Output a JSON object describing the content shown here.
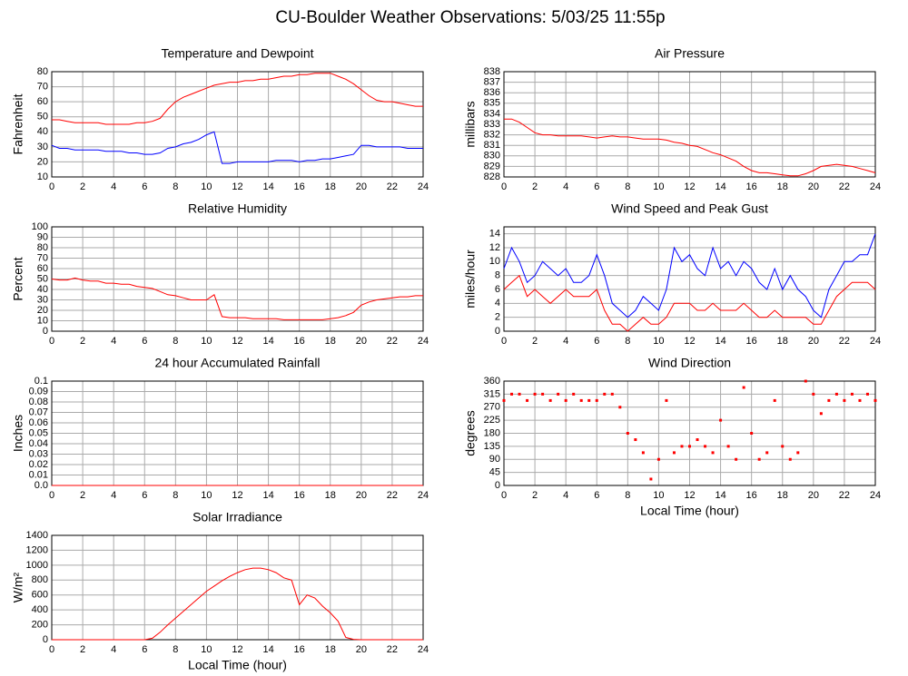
{
  "title": "CU-Boulder Weather Observations: 5/03/25 11:55p",
  "chart_data": [
    {
      "type": "line",
      "title": "Temperature and Dewpoint",
      "ylabel": "Fahrenheit",
      "x": [
        0,
        0.5,
        1,
        1.5,
        2,
        2.5,
        3,
        3.5,
        4,
        4.5,
        5,
        5.5,
        6,
        6.5,
        7,
        7.5,
        8,
        8.5,
        9,
        9.5,
        10,
        10.5,
        11,
        11.5,
        12,
        12.5,
        13,
        13.5,
        14,
        14.5,
        15,
        15.5,
        16,
        16.5,
        17,
        17.5,
        18,
        18.5,
        19,
        19.5,
        20,
        20.5,
        21,
        21.5,
        22,
        22.5,
        23,
        23.5,
        24
      ],
      "series": [
        {
          "color": "#ff0000",
          "values": [
            48,
            48,
            47,
            46,
            46,
            46,
            46,
            45,
            45,
            45,
            45,
            46,
            46,
            47,
            49,
            55,
            60,
            63,
            65,
            67,
            69,
            71,
            72,
            73,
            73,
            74,
            74,
            75,
            75,
            76,
            77,
            77,
            78,
            78,
            79,
            79,
            79,
            77,
            75,
            72,
            68,
            64,
            61,
            60,
            60,
            59,
            58,
            57,
            57
          ]
        },
        {
          "color": "#0000ff",
          "values": [
            31,
            29,
            29,
            28,
            28,
            28,
            28,
            27,
            27,
            27,
            26,
            26,
            25,
            25,
            26,
            29,
            30,
            32,
            33,
            35,
            38,
            40,
            19,
            19,
            20,
            20,
            20,
            20,
            20,
            21,
            21,
            21,
            20,
            21,
            21,
            22,
            22,
            23,
            24,
            25,
            31,
            31,
            30,
            30,
            30,
            30,
            29,
            29,
            29
          ]
        }
      ],
      "xlim": [
        0,
        24
      ],
      "xticks": [
        0,
        2,
        4,
        6,
        8,
        10,
        12,
        14,
        16,
        18,
        20,
        22,
        24
      ],
      "ylim": [
        10,
        80
      ],
      "yticks": [
        10,
        20,
        30,
        40,
        50,
        60,
        70,
        80
      ],
      "grid": true
    },
    {
      "type": "line",
      "title": "Air Pressure",
      "ylabel": "millibars",
      "x": [
        0,
        0.5,
        1,
        1.5,
        2,
        2.5,
        3,
        3.5,
        4,
        4.5,
        5,
        5.5,
        6,
        6.5,
        7,
        7.5,
        8,
        8.5,
        9,
        9.5,
        10,
        10.5,
        11,
        11.5,
        12,
        12.5,
        13,
        13.5,
        14,
        14.5,
        15,
        15.5,
        16,
        16.5,
        17,
        17.5,
        18,
        18.5,
        19,
        19.5,
        20,
        20.5,
        21,
        21.5,
        22,
        22.5,
        23,
        23.5,
        24
      ],
      "series": [
        {
          "color": "#ff0000",
          "values": [
            833.5,
            833.5,
            833.2,
            832.7,
            832.2,
            832,
            832,
            831.9,
            831.9,
            831.9,
            831.9,
            831.8,
            831.7,
            831.8,
            831.9,
            831.8,
            831.8,
            831.7,
            831.6,
            831.6,
            831.6,
            831.5,
            831.3,
            831.2,
            831,
            830.9,
            830.6,
            830.3,
            830.1,
            829.8,
            829.5,
            829,
            828.6,
            828.4,
            828.4,
            828.3,
            828.2,
            828.1,
            828.1,
            828.3,
            828.6,
            829,
            829.1,
            829.2,
            829.1,
            829,
            828.8,
            828.6,
            828.4
          ]
        }
      ],
      "xlim": [
        0,
        24
      ],
      "xticks": [
        0,
        2,
        4,
        6,
        8,
        10,
        12,
        14,
        16,
        18,
        20,
        22,
        24
      ],
      "ylim": [
        828,
        838
      ],
      "yticks": [
        828,
        829,
        830,
        831,
        832,
        833,
        834,
        835,
        836,
        837,
        838
      ],
      "grid": true
    },
    {
      "type": "line",
      "title": "Relative Humidity",
      "ylabel": "Percent",
      "x": [
        0,
        0.5,
        1,
        1.5,
        2,
        2.5,
        3,
        3.5,
        4,
        4.5,
        5,
        5.5,
        6,
        6.5,
        7,
        7.5,
        8,
        8.5,
        9,
        9.5,
        10,
        10.5,
        11,
        11.5,
        12,
        12.5,
        13,
        13.5,
        14,
        14.5,
        15,
        15.5,
        16,
        16.5,
        17,
        17.5,
        18,
        18.5,
        19,
        19.5,
        20,
        20.5,
        21,
        21.5,
        22,
        22.5,
        23,
        23.5,
        24
      ],
      "series": [
        {
          "color": "#ff0000",
          "values": [
            50,
            49,
            49,
            51,
            49,
            48,
            48,
            46,
            46,
            45,
            45,
            43,
            42,
            41,
            38,
            35,
            34,
            32,
            30,
            30,
            30,
            35,
            14,
            13,
            13,
            13,
            12,
            12,
            12,
            12,
            11,
            11,
            11,
            11,
            11,
            11,
            12,
            13,
            15,
            18,
            25,
            28,
            30,
            31,
            32,
            33,
            33,
            34,
            34
          ]
        }
      ],
      "xlim": [
        0,
        24
      ],
      "xticks": [
        0,
        2,
        4,
        6,
        8,
        10,
        12,
        14,
        16,
        18,
        20,
        22,
        24
      ],
      "ylim": [
        0,
        100
      ],
      "yticks": [
        0,
        10,
        20,
        30,
        40,
        50,
        60,
        70,
        80,
        90,
        100
      ],
      "grid": true
    },
    {
      "type": "line",
      "title": "Wind Speed and Peak Gust",
      "ylabel": "miles/hour",
      "x": [
        0,
        0.5,
        1,
        1.5,
        2,
        2.5,
        3,
        3.5,
        4,
        4.5,
        5,
        5.5,
        6,
        6.5,
        7,
        7.5,
        8,
        8.5,
        9,
        9.5,
        10,
        10.5,
        11,
        11.5,
        12,
        12.5,
        13,
        13.5,
        14,
        14.5,
        15,
        15.5,
        16,
        16.5,
        17,
        17.5,
        18,
        18.5,
        19,
        19.5,
        20,
        20.5,
        21,
        21.5,
        22,
        22.5,
        23,
        23.5,
        24
      ],
      "series": [
        {
          "color": "#0000ff",
          "values": [
            9,
            12,
            10,
            7,
            8,
            10,
            9,
            8,
            9,
            7,
            7,
            8,
            11,
            8,
            4,
            3,
            2,
            3,
            5,
            4,
            3,
            6,
            12,
            10,
            11,
            9,
            8,
            12,
            9,
            10,
            8,
            10,
            9,
            7,
            6,
            9,
            6,
            8,
            6,
            5,
            3,
            2,
            6,
            8,
            10,
            10,
            11,
            11,
            14
          ]
        },
        {
          "color": "#ff0000",
          "values": [
            6,
            7,
            8,
            5,
            6,
            5,
            4,
            5,
            6,
            5,
            5,
            5,
            6,
            3,
            1,
            1,
            0,
            1,
            2,
            1,
            1,
            2,
            4,
            4,
            4,
            3,
            3,
            4,
            3,
            3,
            3,
            4,
            3,
            2,
            2,
            3,
            2,
            2,
            2,
            2,
            1,
            1,
            3,
            5,
            6,
            7,
            7,
            7,
            6
          ]
        }
      ],
      "xlim": [
        0,
        24
      ],
      "xticks": [
        0,
        2,
        4,
        6,
        8,
        10,
        12,
        14,
        16,
        18,
        20,
        22,
        24
      ],
      "ylim": [
        0,
        15
      ],
      "yticks": [
        0,
        2,
        4,
        6,
        8,
        10,
        12,
        14
      ],
      "grid": true
    },
    {
      "type": "line",
      "title": "24 hour Accumulated Rainfall",
      "ylabel": "Inches",
      "x": [
        0,
        24
      ],
      "series": [
        {
          "color": "#ff0000",
          "values": [
            0,
            0
          ]
        }
      ],
      "xlim": [
        0,
        24
      ],
      "xticks": [
        0,
        2,
        4,
        6,
        8,
        10,
        12,
        14,
        16,
        18,
        20,
        22,
        24
      ],
      "ylim": [
        0,
        0.1
      ],
      "yticks": [
        {
          "value": 0,
          "label": "0.0"
        },
        0.01,
        0.02,
        0.03,
        0.04,
        0.05,
        0.06,
        0.07,
        0.08,
        0.09,
        0.1
      ],
      "grid": true
    },
    {
      "type": "scatter",
      "title": "Wind Direction",
      "ylabel": "degrees",
      "xlabel": "Local Time (hour)",
      "x": [
        0,
        0.5,
        1,
        1.5,
        2,
        2.5,
        3,
        3.5,
        4,
        4.5,
        5,
        5.5,
        6,
        6.5,
        7,
        7.5,
        8,
        8.5,
        9,
        9.5,
        10,
        10.5,
        11,
        11.5,
        12,
        12.5,
        13,
        13.5,
        14,
        14.5,
        15,
        15.5,
        16,
        16.5,
        17,
        17.5,
        18,
        18.5,
        19,
        19.5,
        20,
        20.5,
        21,
        21.5,
        22,
        22.5,
        23,
        23.5,
        24
      ],
      "series": [
        {
          "color": "#ff0000",
          "values": [
            293,
            315,
            315,
            293,
            315,
            315,
            293,
            315,
            293,
            315,
            293,
            293,
            293,
            315,
            315,
            270,
            180,
            158,
            113,
            22,
            90,
            293,
            113,
            135,
            135,
            158,
            135,
            113,
            225,
            135,
            90,
            338,
            180,
            90,
            113,
            293,
            135,
            90,
            113,
            360,
            315,
            248,
            293,
            315,
            293,
            315,
            293,
            315,
            293
          ]
        }
      ],
      "xlim": [
        0,
        24
      ],
      "xticks": [
        0,
        2,
        4,
        6,
        8,
        10,
        12,
        14,
        16,
        18,
        20,
        22,
        24
      ],
      "ylim": [
        0,
        360
      ],
      "yticks": [
        0,
        45,
        90,
        135,
        180,
        225,
        270,
        315,
        360
      ],
      "grid": true
    },
    {
      "type": "line",
      "title": "Solar Irradiance",
      "ylabel": "W/m²",
      "xlabel": "Local Time (hour)",
      "x": [
        0,
        0.5,
        1,
        1.5,
        2,
        2.5,
        3,
        3.5,
        4,
        4.5,
        5,
        5.5,
        6,
        6.5,
        7,
        7.5,
        8,
        8.5,
        9,
        9.5,
        10,
        10.5,
        11,
        11.5,
        12,
        12.5,
        13,
        13.5,
        14,
        14.5,
        15,
        15.5,
        16,
        16.5,
        17,
        17.5,
        18,
        18.5,
        19,
        19.5,
        20,
        20.5,
        21,
        21.5,
        22,
        22.5,
        23,
        23.5,
        24
      ],
      "series": [
        {
          "color": "#ff0000",
          "values": [
            0,
            0,
            0,
            0,
            0,
            0,
            0,
            0,
            0,
            0,
            0,
            0,
            0,
            20,
            100,
            200,
            290,
            380,
            470,
            560,
            650,
            720,
            790,
            850,
            900,
            940,
            960,
            960,
            940,
            900,
            830,
            800,
            470,
            600,
            560,
            450,
            360,
            250,
            30,
            5,
            0,
            0,
            0,
            0,
            0,
            0,
            0,
            0,
            0
          ]
        }
      ],
      "xlim": [
        0,
        24
      ],
      "xticks": [
        0,
        2,
        4,
        6,
        8,
        10,
        12,
        14,
        16,
        18,
        20,
        22,
        24
      ],
      "ylim": [
        0,
        1400
      ],
      "yticks": [
        0,
        200,
        400,
        600,
        800,
        1000,
        1200,
        1400
      ],
      "grid": true
    }
  ]
}
